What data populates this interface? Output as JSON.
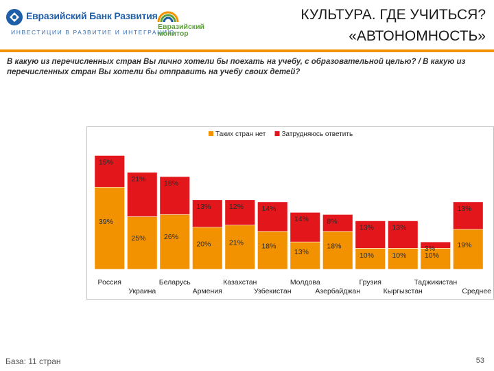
{
  "header": {
    "bank_name": "Евразийский Банк Развития",
    "bank_tagline": "ИНВЕСТИЦИИ В РАЗВИТИЕ И ИНТЕГРАЦИЮ",
    "monitor_name_line1": "Евразийский",
    "monitor_name_line2": "монитор",
    "title_line1": "КУЛЬТУРА. ГДЕ УЧИТЬСЯ?",
    "title_line2": "«АВТОНОМНОСТЬ»"
  },
  "question": "В какую из перечисленных стран Вы лично хотели бы поехать на учебу, с образовательной целью? / В какую из перечисленных стран Вы хотели бы отправить на учебу своих детей?",
  "footer": {
    "base": "База: 11 стран",
    "page": "53"
  },
  "colors": {
    "orange": "#f39200",
    "red": "#e2161b",
    "accent": "#f39200"
  },
  "chart_data": {
    "type": "bar",
    "stacked": true,
    "categories": [
      "Россия",
      "Украина",
      "Беларусь",
      "Армения",
      "Казахстан",
      "Узбекистан",
      "Молдова",
      "Азербайджан",
      "Грузия",
      "Кыргызстан",
      "Таджикистан",
      "Среднее"
    ],
    "series": [
      {
        "name": "Таких стран нет",
        "color": "#f39200",
        "values": [
          39,
          25,
          26,
          20,
          21,
          18,
          13,
          18,
          10,
          10,
          10,
          19
        ]
      },
      {
        "name": "Затрудняюсь ответить",
        "color": "#e2161b",
        "values": [
          15,
          21,
          18,
          13,
          12,
          14,
          14,
          8,
          13,
          13,
          3,
          13
        ]
      }
    ],
    "value_suffix": "%",
    "legend_position": "top",
    "grid": false,
    "ylim": [
      0,
      60
    ]
  }
}
